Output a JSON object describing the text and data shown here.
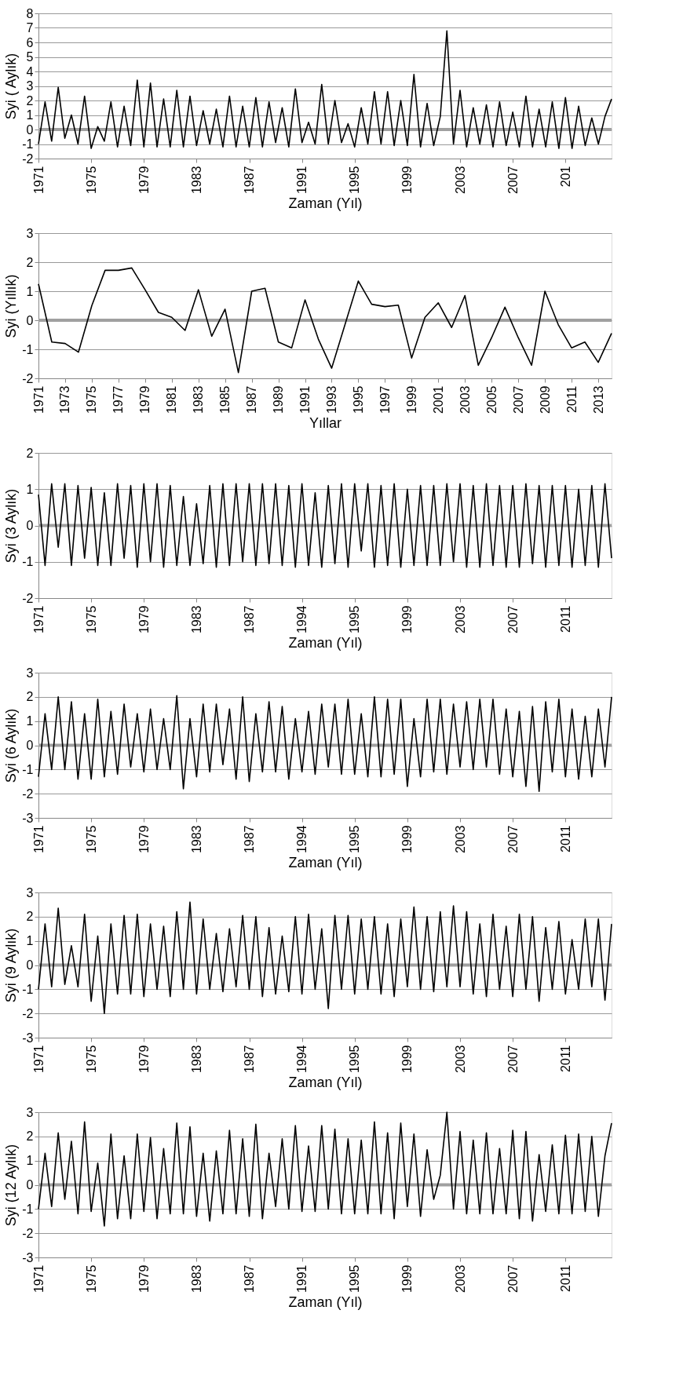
{
  "chart_data": [
    {
      "type": "line",
      "ylabel": "Syi ( Aylık)",
      "xlabel": "Zaman (Yıl)",
      "color": "#000000",
      "grid": "y",
      "ylim": [
        -2,
        8
      ],
      "yticks": [
        -2,
        -1,
        0,
        1,
        2,
        3,
        4,
        5,
        6,
        7,
        8
      ],
      "ref_lines": [
        {
          "axis": "y",
          "value": 0,
          "color": "#a0a0a0"
        }
      ],
      "categories": [
        "1971",
        null,
        null,
        null,
        null,
        null,
        null,
        null,
        "1975",
        null,
        null,
        null,
        null,
        null,
        null,
        null,
        "1979",
        null,
        null,
        null,
        null,
        null,
        null,
        null,
        "1983",
        null,
        null,
        null,
        null,
        null,
        null,
        null,
        "1987",
        null,
        null,
        null,
        null,
        null,
        null,
        null,
        "1991",
        null,
        null,
        null,
        null,
        null,
        null,
        null,
        "1995",
        null,
        null,
        null,
        null,
        null,
        null,
        null,
        "1999",
        null,
        null,
        null,
        null,
        null,
        null,
        null,
        "2003",
        null,
        null,
        null,
        null,
        null,
        null,
        null,
        "2007",
        null,
        null,
        null,
        null,
        null,
        null,
        null,
        "201",
        null,
        null,
        null,
        null,
        null,
        null,
        null
      ],
      "values": [
        -1,
        1.9,
        -0.8,
        2.9,
        -0.6,
        1.0,
        -1.0,
        2.3,
        -1.3,
        0.2,
        -0.8,
        1.9,
        -1.2,
        1.6,
        -1.1,
        3.4,
        -1.2,
        3.2,
        -1.2,
        2.1,
        -1.2,
        2.7,
        -1.2,
        2.3,
        -1.1,
        1.3,
        -1.0,
        1.4,
        -1.2,
        2.3,
        -1.2,
        1.6,
        -1.2,
        2.2,
        -1.2,
        1.9,
        -0.9,
        1.5,
        -1.2,
        2.8,
        -0.9,
        0.5,
        -1.0,
        3.1,
        -1.0,
        2.0,
        -0.9,
        0.4,
        -1.2,
        1.5,
        -1.0,
        2.6,
        -1.0,
        2.6,
        -1.1,
        2.0,
        -1.1,
        3.8,
        -1.2,
        1.8,
        -1.1,
        0.9,
        6.8,
        -1.0,
        2.7,
        -1.2,
        1.5,
        -1.0,
        1.7,
        -1.2,
        1.9,
        -1.1,
        1.2,
        -1.2,
        2.3,
        -1.2,
        1.4,
        -1.2,
        1.9,
        -1.3,
        2.2,
        -1.3,
        1.6,
        -1.1,
        0.8,
        -1.0,
        0.9,
        2.1
      ]
    },
    {
      "type": "line",
      "ylabel": "Syi (Yıllık)",
      "xlabel": "Yıllar",
      "color": "#000000",
      "grid": "y",
      "ylim": [
        -2,
        3
      ],
      "yticks": [
        -2,
        -1,
        0,
        1,
        2,
        3
      ],
      "ref_lines": [
        {
          "axis": "y",
          "value": 0,
          "color": "#a0a0a0"
        }
      ],
      "categories": [
        "1971",
        null,
        "1973",
        null,
        "1975",
        null,
        "1977",
        null,
        "1979",
        null,
        "1981",
        null,
        "1983",
        null,
        "1985",
        null,
        "1987",
        null,
        "1989",
        null,
        "1991",
        null,
        "1993",
        null,
        "1995",
        null,
        "1997",
        null,
        "1999",
        null,
        "2001",
        null,
        "2003",
        null,
        "2005",
        null,
        "2007",
        null,
        "2009",
        null,
        "2011",
        null,
        "2013",
        null
      ],
      "values": [
        1.25,
        -0.75,
        -0.8,
        -1.1,
        0.5,
        1.72,
        1.72,
        1.8,
        1.05,
        0.27,
        0.1,
        -0.35,
        1.05,
        -0.55,
        0.38,
        -1.8,
        1.0,
        1.1,
        -0.75,
        -0.95,
        0.7,
        -0.65,
        -1.65,
        -0.15,
        1.35,
        0.55,
        0.47,
        0.52,
        -1.3,
        0.1,
        0.6,
        -0.25,
        0.85,
        -1.55,
        -0.6,
        0.45,
        -0.6,
        -1.55,
        1.0,
        -0.15,
        -0.95,
        -0.75,
        -1.45,
        -0.45
      ]
    },
    {
      "type": "line",
      "ylabel": "Syi (3 Aylık)",
      "xlabel": "Zaman (Yıl)",
      "color": "#000000",
      "grid": "y",
      "ylim": [
        -2,
        2
      ],
      "yticks": [
        -2,
        -1,
        0,
        1,
        2
      ],
      "ref_lines": [
        {
          "axis": "y",
          "value": 0,
          "color": "#a0a0a0"
        }
      ],
      "categories": [
        "1971",
        null,
        null,
        null,
        null,
        null,
        null,
        null,
        "1975",
        null,
        null,
        null,
        null,
        null,
        null,
        null,
        "1979",
        null,
        null,
        null,
        null,
        null,
        null,
        null,
        "1983",
        null,
        null,
        null,
        null,
        null,
        null,
        null,
        "1987",
        null,
        null,
        null,
        null,
        null,
        null,
        null,
        "1994",
        null,
        null,
        null,
        null,
        null,
        null,
        null,
        "1995",
        null,
        null,
        null,
        null,
        null,
        null,
        null,
        "1999",
        null,
        null,
        null,
        null,
        null,
        null,
        null,
        "2003",
        null,
        null,
        null,
        null,
        null,
        null,
        null,
        "2007",
        null,
        null,
        null,
        null,
        null,
        null,
        null,
        "2011",
        null,
        null,
        null,
        null,
        null,
        null,
        null
      ],
      "values": [
        0.85,
        -1.1,
        1.15,
        -0.6,
        1.15,
        -1.1,
        1.1,
        -0.9,
        1.05,
        -1.1,
        0.9,
        -1.1,
        1.15,
        -0.9,
        1.1,
        -1.15,
        1.15,
        -1.0,
        1.15,
        -1.15,
        1.1,
        -1.1,
        0.8,
        -1.1,
        0.6,
        -1.05,
        1.1,
        -1.15,
        1.15,
        -1.1,
        1.15,
        -1.0,
        1.15,
        -1.1,
        1.15,
        -1.05,
        1.15,
        -1.1,
        1.1,
        -1.15,
        1.15,
        -1.1,
        0.9,
        -1.15,
        1.1,
        -1.05,
        1.15,
        -1.15,
        1.15,
        -0.7,
        1.15,
        -1.15,
        1.1,
        -1.1,
        1.15,
        -1.15,
        1.0,
        -1.1,
        1.1,
        -1.1,
        1.1,
        -1.1,
        1.15,
        -1.0,
        1.15,
        -1.15,
        1.1,
        -1.15,
        1.15,
        -1.1,
        1.1,
        -1.15,
        1.1,
        -1.15,
        1.15,
        -1.05,
        1.1,
        -1.15,
        1.1,
        -1.1,
        1.1,
        -1.15,
        1.0,
        -1.1,
        1.1,
        -1.15,
        1.15,
        -0.9
      ]
    },
    {
      "type": "line",
      "ylabel": "Syi (6 Aylık)",
      "xlabel": "Zaman (Yıl)",
      "color": "#000000",
      "grid": "y",
      "ylim": [
        -3,
        3
      ],
      "yticks": [
        -3,
        -2,
        -1,
        0,
        1,
        2,
        3
      ],
      "ref_lines": [
        {
          "axis": "y",
          "value": 0,
          "color": "#a0a0a0"
        }
      ],
      "categories": [
        "1971",
        null,
        null,
        null,
        null,
        null,
        null,
        null,
        "1975",
        null,
        null,
        null,
        null,
        null,
        null,
        null,
        "1979",
        null,
        null,
        null,
        null,
        null,
        null,
        null,
        "1983",
        null,
        null,
        null,
        null,
        null,
        null,
        null,
        "1987",
        null,
        null,
        null,
        null,
        null,
        null,
        null,
        "1994",
        null,
        null,
        null,
        null,
        null,
        null,
        null,
        "1995",
        null,
        null,
        null,
        null,
        null,
        null,
        null,
        "1999",
        null,
        null,
        null,
        null,
        null,
        null,
        null,
        "2003",
        null,
        null,
        null,
        null,
        null,
        null,
        null,
        "2007",
        null,
        null,
        null,
        null,
        null,
        null,
        null,
        "2011",
        null,
        null,
        null,
        null,
        null,
        null,
        null
      ],
      "values": [
        -1.3,
        1.3,
        -1.0,
        2.0,
        -1.0,
        1.8,
        -1.4,
        1.3,
        -1.4,
        1.9,
        -1.3,
        1.4,
        -1.2,
        1.7,
        -0.9,
        1.3,
        -1.1,
        1.5,
        -1.0,
        1.1,
        -1.0,
        2.05,
        -1.8,
        1.1,
        -1.3,
        1.7,
        -1.1,
        1.7,
        -0.8,
        1.5,
        -1.4,
        2.0,
        -1.5,
        1.3,
        -1.1,
        1.8,
        -1.1,
        1.6,
        -1.4,
        1.1,
        -1.1,
        1.4,
        -1.2,
        1.7,
        -0.9,
        1.7,
        -1.2,
        1.9,
        -1.2,
        1.3,
        -1.3,
        2.0,
        -1.3,
        1.9,
        -1.2,
        1.9,
        -1.7,
        1.1,
        -1.3,
        1.9,
        -1.1,
        1.9,
        -1.2,
        1.7,
        -0.9,
        1.8,
        -1.0,
        1.9,
        -0.9,
        1.9,
        -1.2,
        1.5,
        -1.3,
        1.4,
        -1.7,
        1.6,
        -1.9,
        1.8,
        -1.1,
        1.9,
        -1.3,
        1.5,
        -1.4,
        1.2,
        -1.3,
        1.5,
        -0.9,
        2.0
      ]
    },
    {
      "type": "line",
      "ylabel": "Syi (9 Aylık)",
      "xlabel": "Zaman (Yıl)",
      "color": "#000000",
      "grid": "y",
      "ylim": [
        -3,
        3
      ],
      "yticks": [
        -3,
        -2,
        -1,
        0,
        1,
        2,
        3
      ],
      "ref_lines": [
        {
          "axis": "y",
          "value": 0,
          "color": "#a0a0a0"
        }
      ],
      "categories": [
        "1971",
        null,
        null,
        null,
        null,
        null,
        null,
        null,
        "1975",
        null,
        null,
        null,
        null,
        null,
        null,
        null,
        "1979",
        null,
        null,
        null,
        null,
        null,
        null,
        null,
        "1983",
        null,
        null,
        null,
        null,
        null,
        null,
        null,
        "1987",
        null,
        null,
        null,
        null,
        null,
        null,
        null,
        "1994",
        null,
        null,
        null,
        null,
        null,
        null,
        null,
        "1995",
        null,
        null,
        null,
        null,
        null,
        null,
        null,
        "1999",
        null,
        null,
        null,
        null,
        null,
        null,
        null,
        "2003",
        null,
        null,
        null,
        null,
        null,
        null,
        null,
        "2007",
        null,
        null,
        null,
        null,
        null,
        null,
        null,
        "2011",
        null,
        null,
        null,
        null,
        null,
        null,
        null
      ],
      "values": [
        -1.0,
        1.7,
        -0.9,
        2.35,
        -0.8,
        0.8,
        -0.9,
        2.1,
        -1.5,
        1.2,
        -2.0,
        1.7,
        -1.2,
        2.05,
        -1.2,
        2.1,
        -1.3,
        1.7,
        -1.0,
        1.6,
        -1.3,
        2.2,
        -1.0,
        2.6,
        -1.2,
        1.9,
        -1.0,
        1.3,
        -1.1,
        1.5,
        -0.9,
        2.05,
        -1.0,
        2.0,
        -1.3,
        1.55,
        -1.2,
        1.2,
        -1.1,
        2.0,
        -1.2,
        2.1,
        -1.0,
        1.5,
        -1.8,
        2.05,
        -1.0,
        2.05,
        -1.2,
        1.9,
        -1.0,
        2.0,
        -1.2,
        1.7,
        -1.3,
        1.9,
        -0.9,
        2.4,
        -1.0,
        2.0,
        -1.1,
        2.2,
        -0.9,
        2.45,
        -0.9,
        2.2,
        -1.2,
        1.7,
        -1.3,
        2.1,
        -1.0,
        1.6,
        -1.3,
        2.1,
        -1.0,
        2.0,
        -1.5,
        1.55,
        -1.0,
        1.8,
        -1.2,
        1.05,
        -1.0,
        1.9,
        -0.9,
        1.9,
        -1.45,
        1.7
      ]
    },
    {
      "type": "line",
      "ylabel": "Syi (12 Aylık)",
      "xlabel": "Zaman (Yıl)",
      "color": "#000000",
      "grid": "y",
      "ylim": [
        -3,
        3
      ],
      "yticks": [
        -3,
        -2,
        -1,
        0,
        1,
        2,
        3
      ],
      "ref_lines": [
        {
          "axis": "y",
          "value": 0,
          "color": "#a0a0a0"
        }
      ],
      "categories": [
        "1971",
        null,
        null,
        null,
        null,
        null,
        null,
        null,
        "1975",
        null,
        null,
        null,
        null,
        null,
        null,
        null,
        "1979",
        null,
        null,
        null,
        null,
        null,
        null,
        null,
        "1983",
        null,
        null,
        null,
        null,
        null,
        null,
        null,
        "1987",
        null,
        null,
        null,
        null,
        null,
        null,
        null,
        "1991",
        null,
        null,
        null,
        null,
        null,
        null,
        null,
        "1995",
        null,
        null,
        null,
        null,
        null,
        null,
        null,
        "1999",
        null,
        null,
        null,
        null,
        null,
        null,
        null,
        "2003",
        null,
        null,
        null,
        null,
        null,
        null,
        null,
        "2007",
        null,
        null,
        null,
        null,
        null,
        null,
        null,
        "2011",
        null,
        null,
        null,
        null,
        null,
        null,
        null
      ],
      "values": [
        -1.0,
        1.3,
        -0.9,
        2.15,
        -0.6,
        1.8,
        -1.2,
        2.6,
        -1.1,
        0.9,
        -1.7,
        2.1,
        -1.4,
        1.2,
        -1.4,
        2.1,
        -1.1,
        1.95,
        -1.4,
        1.5,
        -1.2,
        2.55,
        -1.2,
        2.4,
        -1.3,
        1.3,
        -1.5,
        1.4,
        -1.2,
        2.25,
        -1.2,
        1.9,
        -1.3,
        2.5,
        -1.4,
        1.3,
        -0.9,
        1.9,
        -1.0,
        2.45,
        -1.1,
        1.6,
        -1.1,
        2.45,
        -1.0,
        2.3,
        -1.2,
        1.9,
        -1.2,
        1.85,
        -1.2,
        2.6,
        -1.2,
        2.15,
        -1.4,
        2.55,
        -0.9,
        2.1,
        -1.3,
        1.45,
        -0.6,
        0.4,
        3.0,
        -1.0,
        2.2,
        -1.2,
        1.85,
        -1.2,
        2.15,
        -1.2,
        1.5,
        -1.2,
        2.25,
        -1.4,
        2.2,
        -1.5,
        1.25,
        -1.1,
        1.65,
        -1.2,
        2.05,
        -1.2,
        2.1,
        -1.1,
        2.0,
        -1.3,
        1.2,
        2.55
      ]
    }
  ]
}
